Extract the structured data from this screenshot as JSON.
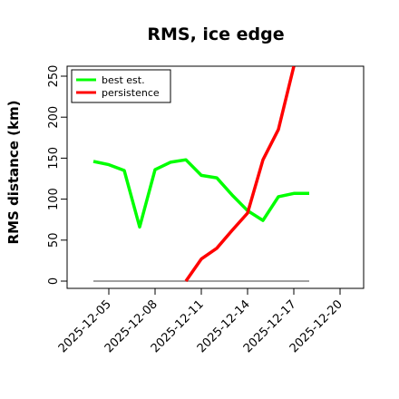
{
  "chart_data": {
    "type": "line",
    "title": "RMS, ice edge",
    "ylabel": "RMS distance (km)",
    "xlabel": "",
    "ylim": [
      0,
      260
    ],
    "y_ticks": [
      0,
      50,
      100,
      150,
      200,
      250
    ],
    "x_ticks": [
      "2025-12-05",
      "2025-12-08",
      "2025-12-11",
      "2025-12-14",
      "2025-12-17",
      "2025-12-20"
    ],
    "x_start": "2025-12-04",
    "x_end": "2025-12-22",
    "legend_position": "top-left",
    "series": [
      {
        "name": "best est.",
        "color": "#00ff00",
        "x": [
          "2025-12-04",
          "2025-12-05",
          "2025-12-06",
          "2025-12-07",
          "2025-12-08",
          "2025-12-09",
          "2025-12-10",
          "2025-12-11",
          "2025-12-12",
          "2025-12-13",
          "2025-12-14",
          "2025-12-15",
          "2025-12-16",
          "2025-12-17",
          "2025-12-18"
        ],
        "values": [
          146,
          142,
          135,
          66,
          136,
          145,
          148,
          129,
          126,
          105,
          86,
          74,
          103,
          107,
          107
        ]
      },
      {
        "name": "persistence",
        "color": "#ff0000",
        "x": [
          "2025-12-10",
          "2025-12-11",
          "2025-12-12",
          "2025-12-13",
          "2025-12-14",
          "2025-12-15",
          "2025-12-16",
          "2025-12-17"
        ],
        "values": [
          0,
          27,
          40,
          62,
          83,
          148,
          185,
          262
        ]
      },
      {
        "name": "",
        "color": "#808080",
        "x": [
          "2025-12-04",
          "2025-12-18"
        ],
        "values": [
          0,
          0
        ]
      }
    ]
  }
}
